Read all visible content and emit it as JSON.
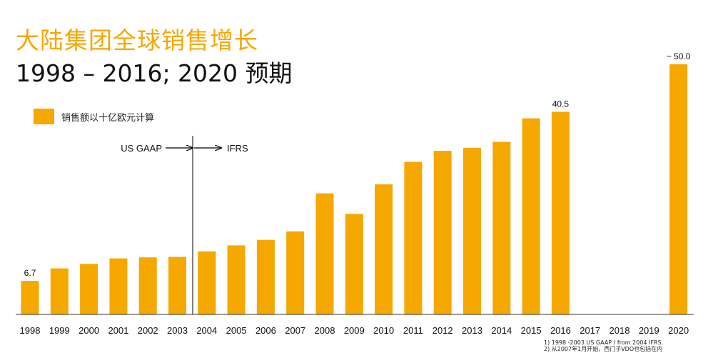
{
  "header": {
    "title": "大陆集团全球销售增长",
    "subtitle": "1998 – 2016; 2020 预期"
  },
  "legend": {
    "label": "销售额以十亿欧元计算"
  },
  "accounting": {
    "left_label": "US GAAP",
    "right_label": "IFRS"
  },
  "footnotes": {
    "line1": "1) 1998 -2003 US GAAP / from 2004 IFRS.",
    "line2": "2) 从2007年1月开始，西门子VDO也包括在内"
  },
  "chart_data": {
    "type": "bar",
    "title": "大陆集团全球销售增长",
    "subtitle": "1998 – 2016; 2020 预期",
    "xlabel": "",
    "ylabel": "",
    "ylim": [
      0,
      50
    ],
    "grid": false,
    "legend_position": "top-left",
    "bar_color": "#f5a800",
    "series": [
      {
        "name": "销售额以十亿欧元计算",
        "values": [
          6.7,
          9.2,
          10.1,
          11.2,
          11.4,
          11.5,
          12.6,
          13.8,
          14.9,
          16.6,
          24.2,
          20.1,
          26.0,
          30.5,
          32.7,
          33.3,
          34.5,
          39.2,
          40.5,
          null,
          null,
          null,
          50.0
        ]
      }
    ],
    "categories": [
      "1998",
      "1999",
      "2000",
      "2001",
      "2002",
      "2003",
      "2004",
      "2005",
      "2006",
      "2007",
      "2008",
      "2009",
      "2010",
      "2011",
      "2012",
      "2013",
      "2014",
      "2015",
      "2016",
      "2017",
      "2018",
      "2019",
      "2020"
    ],
    "data_labels": [
      {
        "category": "1998",
        "text": "6.7"
      },
      {
        "category": "2016",
        "text": "40.5"
      },
      {
        "category": "2020",
        "text": "~ 50.0"
      }
    ]
  }
}
